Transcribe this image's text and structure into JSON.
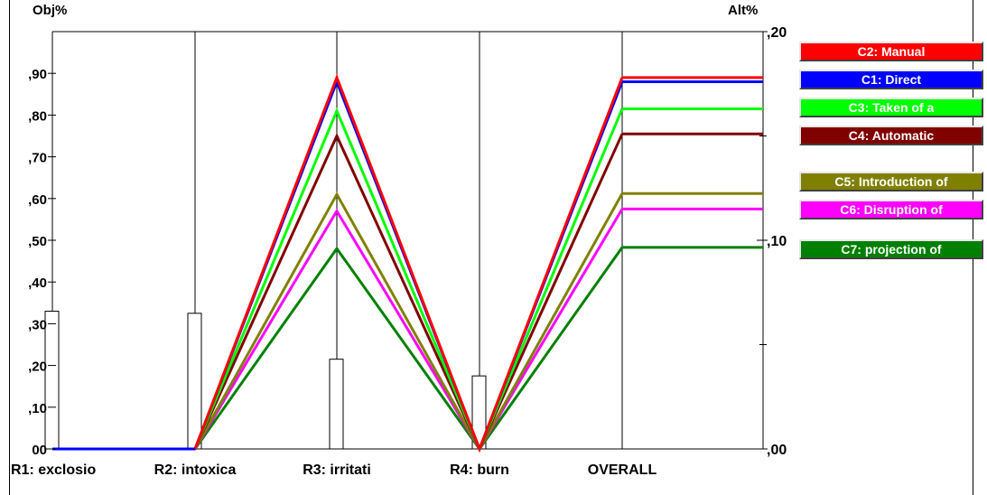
{
  "chart_data": {
    "type": "line",
    "left_axis": {
      "label": "Obj%",
      "range": [
        0,
        1.0
      ],
      "ticks": [
        {
          "v": 0.9,
          "t": ",90"
        },
        {
          "v": 0.8,
          "t": ",80"
        },
        {
          "v": 0.7,
          "t": ",70"
        },
        {
          "v": 0.6,
          "t": ",60"
        },
        {
          "v": 0.5,
          "t": ",50"
        },
        {
          "v": 0.4,
          "t": ",40"
        },
        {
          "v": 0.3,
          "t": ",30"
        },
        {
          "v": 0.2,
          "t": ",20"
        },
        {
          "v": 0.1,
          "t": ",10"
        },
        {
          "v": 0.0,
          "t": "00"
        }
      ]
    },
    "right_axis": {
      "label": "Alt%",
      "range": [
        0,
        0.2
      ],
      "ticks": [
        {
          "v": 0.2,
          "t": ",20"
        },
        {
          "v": 0.1,
          "t": ",10"
        },
        {
          "v": 0.0,
          "t": ",00"
        }
      ],
      "minor_ticks": [
        0.05,
        0.15
      ]
    },
    "categories": [
      "R1: exclosio",
      "R2: intoxica",
      "R3: irritati",
      "R4: burn",
      "OVERALL"
    ],
    "weights": [
      0.33,
      0.325,
      0.215,
      0.175
    ],
    "series": [
      {
        "name": "C2: Manual",
        "color": "#ff0000",
        "values": [
          0.0,
          0.0,
          0.89,
          0.0,
          0.89
        ]
      },
      {
        "name": "C1: Direct",
        "color": "#0000ff",
        "values": [
          0.0,
          0.0,
          0.88,
          0.0,
          0.88
        ]
      },
      {
        "name": "C3: Taken of a",
        "color": "#00ff00",
        "values": [
          0.0,
          0.0,
          0.81,
          0.0,
          0.815
        ]
      },
      {
        "name": "C4: Automatic",
        "color": "#800000",
        "values": [
          0.0,
          0.0,
          0.75,
          0.0,
          0.755
        ]
      },
      {
        "name": "C5: Introduction of",
        "color": "#808000",
        "values": [
          0.0,
          0.0,
          0.61,
          0.0,
          0.612
        ]
      },
      {
        "name": "C6: Disruption of",
        "color": "#ff00ff",
        "values": [
          0.0,
          0.0,
          0.57,
          0.0,
          0.575
        ]
      },
      {
        "name": "C7: projection of",
        "color": "#008000",
        "values": [
          0.0,
          0.0,
          0.48,
          0.0,
          0.483
        ]
      }
    ]
  }
}
